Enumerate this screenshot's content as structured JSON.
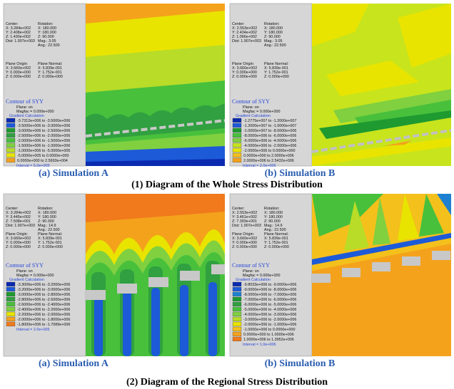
{
  "panels": [
    {
      "center_rotation": {
        "left": [
          "Center:",
          "X: 3.284e+002",
          "Y: 2.408e+002",
          "Z: 1.430e+002",
          "Dist: 1.907e+003"
        ],
        "right": [
          "Rotation:",
          "X: 180.000",
          "Y: 180.000",
          "Z: 90.000",
          "Mag.: 3.05",
          "Ang.: 22.500"
        ]
      },
      "plane": {
        "left": [
          "Plane Origin:",
          "X: 3.660e+002",
          "Y: 0.000e+000",
          "Z: 0.000e+000"
        ],
        "right": [
          "Plane Normal:",
          "X: 5.839e-001",
          "Y: 1.752e-001",
          "Z: 0.000e+000"
        ]
      },
      "contour_title": "Contour of SYY",
      "plane_state": "Plane: on",
      "magfac": "Magfac = 0.000e+000",
      "calculation": "Gradient Calculation",
      "legend": [
        {
          "label": "-3.7312e+006 to -3.5000e+006",
          "color": "#0a2ab0"
        },
        {
          "label": "-3.5000e+006 to -3.0000e+006",
          "color": "#1c5ad8"
        },
        {
          "label": "-3.0000e+006 to -2.5000e+006",
          "color": "#1e9a30"
        },
        {
          "label": "-2.5000e+006 to -2.0000e+006",
          "color": "#30a040"
        },
        {
          "label": "-2.0000e+006 to -1.5000e+006",
          "color": "#48c03c"
        },
        {
          "label": "-1.5000e+006 to -1.0000e+006",
          "color": "#80d040"
        },
        {
          "label": "-1.0000e+006 to -5.0000e+005",
          "color": "#b8dc28"
        },
        {
          "label": "-5.0000e+005 to 0.0000e+000",
          "color": "#e8e400"
        },
        {
          "label": "0.0000e+000 to 2.5693e+004",
          "color": "#f4a21c"
        }
      ],
      "interval": "Interval = 5.0e+005",
      "caption": "(a) Simulation A"
    },
    {
      "center_rotation": {
        "left": [
          "Center:",
          "X: 2.553e+002",
          "Y: 2.434e+002",
          "Z: 1.066e+002",
          "Dist: 1.907e+003"
        ],
        "right": [
          "Rotation:",
          "X: 180.000",
          "Y: 180.000",
          "Z: 90.000",
          "Mag.: 3.05",
          "Ang.: 22.500"
        ]
      },
      "plane": {
        "left": [
          "Plane Origin:",
          "X: 3.660e+002",
          "Y: 0.000e+000",
          "Z: 0.000e+000"
        ],
        "right": [
          "Plane Normal:",
          "X: 5.839e-001",
          "Y: 1.752e-001",
          "Z: 0.000e+000"
        ]
      },
      "contour_title": "Contour of SYY",
      "plane_state": "Plane: on",
      "magfac": "Magfac = 0.000e+000",
      "calculation": "Gradient Calculation",
      "legend": [
        {
          "label": "-1.2775e+007 to -1.2000e+007",
          "color": "#0a2ab0"
        },
        {
          "label": "-1.2000e+007 to -1.0000e+007",
          "color": "#1c5ad8"
        },
        {
          "label": "-1.0000e+007 to -8.0000e+006",
          "color": "#1e9a30"
        },
        {
          "label": "-8.0000e+006 to -6.0000e+006",
          "color": "#48c03c"
        },
        {
          "label": "-6.0000e+006 to -4.0000e+006",
          "color": "#80d040"
        },
        {
          "label": "-4.0000e+006 to -2.0000e+006",
          "color": "#c8e41c"
        },
        {
          "label": "-2.0000e+006 to 0.0000e+000",
          "color": "#e8e400"
        },
        {
          "label": "0.0000e+000 to 2.0000e+006",
          "color": "#f4c01c"
        },
        {
          "label": "2.0000e+006 to 2.5432e+006",
          "color": "#f4a21c"
        }
      ],
      "interval": "Interval = 2.0e+006",
      "caption": "(b) Simulation B"
    },
    {
      "center_rotation": {
        "left": [
          "Center:",
          "X: 3.284e+002",
          "Y: 3.445e+002",
          "Z: 7.508e+001",
          "Dist: 1.907e+003"
        ],
        "right": [
          "Rotation:",
          "X: 180.000",
          "Y: 180.000",
          "Z: 90.000",
          "Mag.: 14.9",
          "Ang.: 22.500"
        ]
      },
      "plane": {
        "left": [
          "Plane Origin:",
          "X: 3.660e+002",
          "Y: 0.000e+000",
          "Z: 0.000e+000"
        ],
        "right": [
          "Plane Normal:",
          "X: 5.839e-001",
          "Y: 1.752e-001",
          "Z: 0.000e+000"
        ]
      },
      "contour_title": "Contour of SYY",
      "plane_state": "Plane: on",
      "magfac": "Magfac = 0.000e+000",
      "calculation": "Gradient Calculation",
      "legend": [
        {
          "label": "-3.3006e+006 to -3.2000e+006",
          "color": "#0a2ab0"
        },
        {
          "label": "-3.2000e+006 to -3.0000e+006",
          "color": "#1c5ad8"
        },
        {
          "label": "-3.0000e+006 to -2.8000e+006",
          "color": "#1e9a30"
        },
        {
          "label": "-2.8000e+006 to -2.6000e+006",
          "color": "#30a040"
        },
        {
          "label": "-2.6000e+006 to -2.4000e+006",
          "color": "#48c03c"
        },
        {
          "label": "-2.4000e+006 to -2.2000e+006",
          "color": "#80d040"
        },
        {
          "label": "-2.2000e+006 to -2.0000e+006",
          "color": "#e8e400"
        },
        {
          "label": "-2.0000e+006 to -1.8000e+006",
          "color": "#f4a21c"
        },
        {
          "label": "-1.8000e+006 to -1.7089e+006",
          "color": "#f07a1c"
        }
      ],
      "interval": "Interval = 2.0e+005",
      "caption": "(a) Simulation A"
    },
    {
      "center_rotation": {
        "left": [
          "Center:",
          "X: 2.553e+002",
          "Y: 3.461e+002",
          "Z: 7.393e+001",
          "Dist: 1.907e+003"
        ],
        "right": [
          "Rotation:",
          "X: 180.000",
          "Y: 180.000",
          "Z: 90.000",
          "Mag.: 14.9",
          "Ang.: 22.500"
        ]
      },
      "plane": {
        "left": [
          "Plane Origin:",
          "X: 3.660e+002",
          "Y: 0.000e+000",
          "Z: 0.000e+000"
        ],
        "right": [
          "Plane Normal:",
          "X: 5.839e-001",
          "Y: 1.752e-001",
          "Z: 0.000e+000"
        ]
      },
      "contour_title": "Contour of SYY",
      "plane_state": "Plane: on",
      "magfac": "Magfac = 0.000e+000",
      "calculation": "Gradient Calculation",
      "legend": [
        {
          "label": "-9.8033e+006 to -9.0000e+006",
          "color": "#0a2ab0"
        },
        {
          "label": "-9.0000e+006 to -8.0000e+006",
          "color": "#1c5ad8"
        },
        {
          "label": "-8.0000e+006 to -7.0000e+006",
          "color": "#1e80d0"
        },
        {
          "label": "-7.0000e+006 to -6.0000e+006",
          "color": "#1e9a30"
        },
        {
          "label": "-6.0000e+006 to -5.0000e+006",
          "color": "#30a040"
        },
        {
          "label": "-5.0000e+006 to -4.0000e+006",
          "color": "#48c03c"
        },
        {
          "label": "-4.0000e+006 to -3.0000e+006",
          "color": "#80d040"
        },
        {
          "label": "-3.0000e+006 to -2.0000e+006",
          "color": "#b8dc28"
        },
        {
          "label": "-2.0000e+006 to -1.0000e+006",
          "color": "#e8e400"
        },
        {
          "label": "-1.0000e+006 to 0.0000e+000",
          "color": "#f4c01c"
        },
        {
          "label": "0.0000e+000 to 1.0000e+006",
          "color": "#f4a21c"
        },
        {
          "label": "1.0000e+006 to 1.3952e+006",
          "color": "#f07a1c"
        }
      ],
      "interval": "Interval = 1.0e+006",
      "caption": "(b) Simulation B"
    }
  ],
  "row_titles": [
    "(1) Diagram of the Whole Stress Distribution",
    "(2) Diagram of the Regional Stress Distribution"
  ]
}
